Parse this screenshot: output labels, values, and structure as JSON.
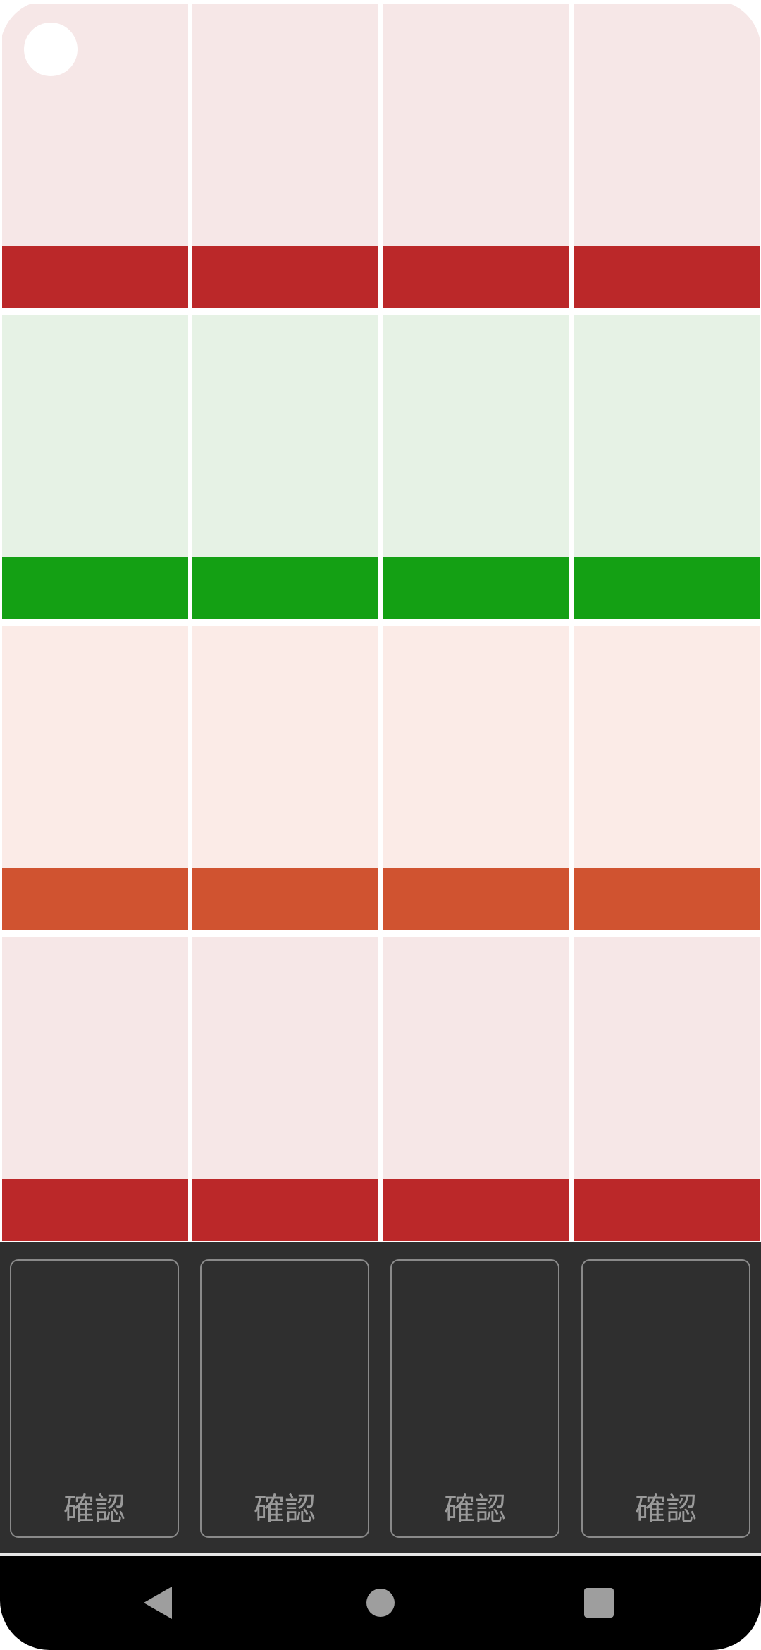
{
  "colors": {
    "red_light": "#f6e7e7",
    "red_strip": "#bb2829",
    "green_light": "#e6f2e5",
    "green_strip": "#14a014",
    "orange_light": "#fbebe7",
    "orange_strip": "#d05330",
    "panel_bg": "#2f2f2f"
  },
  "grid": {
    "rows": [
      {
        "color": "red"
      },
      {
        "color": "green"
      },
      {
        "color": "orange"
      },
      {
        "color": "red"
      }
    ],
    "columns": 4
  },
  "confirm_cards": [
    {
      "label": "確認"
    },
    {
      "label": "確認"
    },
    {
      "label": "確認"
    },
    {
      "label": "確認"
    }
  ],
  "navigation": {
    "back_icon": "back-triangle-icon",
    "home_icon": "home-circle-icon",
    "recents_icon": "recents-square-icon"
  }
}
